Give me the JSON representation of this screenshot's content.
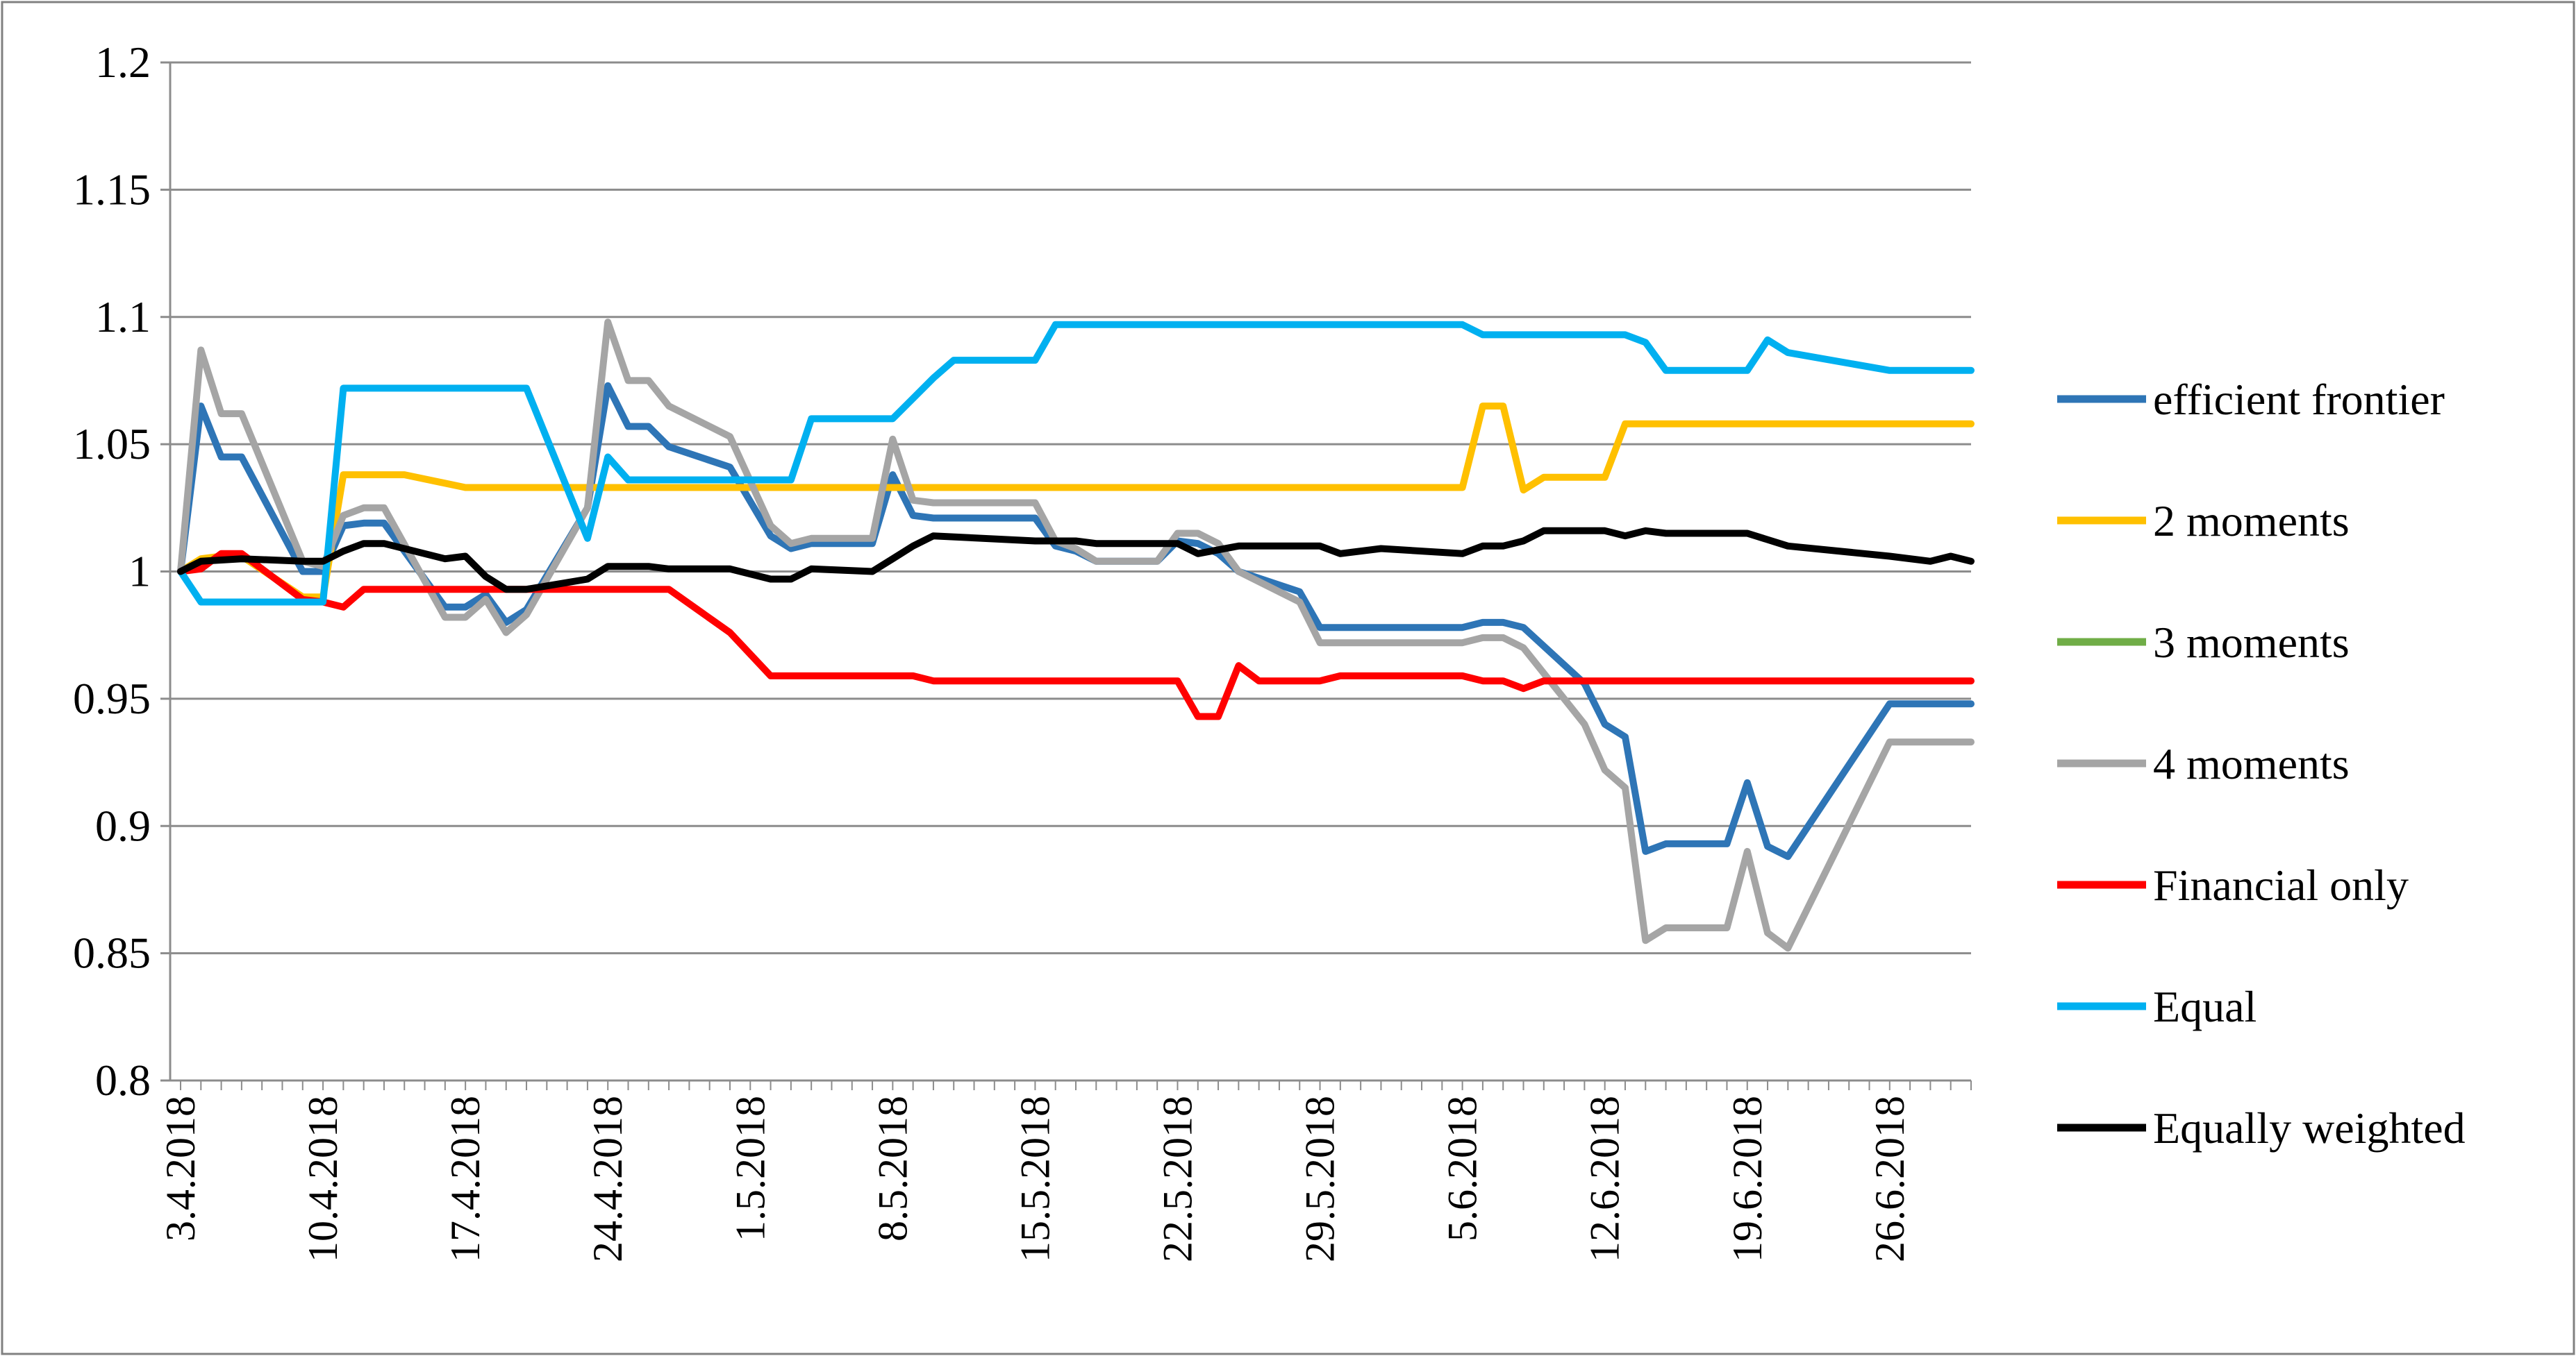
{
  "chart_data": {
    "type": "line",
    "title": "",
    "xlabel": "",
    "ylabel": "",
    "ylim": [
      0.8,
      1.2
    ],
    "y_ticks": [
      "0.8",
      "0.85",
      "0.9",
      "0.95",
      "1",
      "1.05",
      "1.1",
      "1.15",
      "1.2"
    ],
    "x_ticks": [
      "3.4.2018",
      "10.4.2018",
      "17.4.2018",
      "24.4.2018",
      "1.5.2018",
      "8.5.2018",
      "15.5.2018",
      "22.5.2018",
      "29.5.2018",
      "5.6.2018",
      "12.6.2018",
      "19.6.2018",
      "26.6.2018"
    ],
    "x_range": [
      "2018-04-03",
      "2018-06-30"
    ],
    "grid": "horizontal",
    "legend_position": "right",
    "series": [
      {
        "name": "efficient frontier",
        "color": "#2E75B6",
        "points": [
          [
            "2018-04-03",
            1.0
          ],
          [
            "2018-04-04",
            1.065
          ],
          [
            "2018-04-05",
            1.045
          ],
          [
            "2018-04-06",
            1.045
          ],
          [
            "2018-04-09",
            1.0
          ],
          [
            "2018-04-10",
            1.0
          ],
          [
            "2018-04-11",
            1.018
          ],
          [
            "2018-04-12",
            1.019
          ],
          [
            "2018-04-13",
            1.019
          ],
          [
            "2018-04-16",
            0.986
          ],
          [
            "2018-04-17",
            0.986
          ],
          [
            "2018-04-18",
            0.991
          ],
          [
            "2018-04-19",
            0.98
          ],
          [
            "2018-04-20",
            0.985
          ],
          [
            "2018-04-23",
            1.025
          ],
          [
            "2018-04-24",
            1.073
          ],
          [
            "2018-04-25",
            1.057
          ],
          [
            "2018-04-26",
            1.057
          ],
          [
            "2018-04-27",
            1.049
          ],
          [
            "2018-04-30",
            1.041
          ],
          [
            "2018-05-02",
            1.014
          ],
          [
            "2018-05-03",
            1.009
          ],
          [
            "2018-05-04",
            1.011
          ],
          [
            "2018-05-07",
            1.011
          ],
          [
            "2018-05-08",
            1.038
          ],
          [
            "2018-05-09",
            1.022
          ],
          [
            "2018-05-10",
            1.021
          ],
          [
            "2018-05-14",
            1.021
          ],
          [
            "2018-05-15",
            1.021
          ],
          [
            "2018-05-16",
            1.01
          ],
          [
            "2018-05-17",
            1.008
          ],
          [
            "2018-05-18",
            1.004
          ],
          [
            "2018-05-21",
            1.004
          ],
          [
            "2018-05-22",
            1.012
          ],
          [
            "2018-05-23",
            1.011
          ],
          [
            "2018-05-24",
            1.007
          ],
          [
            "2018-05-25",
            1.0
          ],
          [
            "2018-05-28",
            0.992
          ],
          [
            "2018-05-29",
            0.978
          ],
          [
            "2018-05-30",
            0.978
          ],
          [
            "2018-06-04",
            0.978
          ],
          [
            "2018-06-05",
            0.978
          ],
          [
            "2018-06-06",
            0.98
          ],
          [
            "2018-06-07",
            0.98
          ],
          [
            "2018-06-08",
            0.978
          ],
          [
            "2018-06-11",
            0.956
          ],
          [
            "2018-06-12",
            0.94
          ],
          [
            "2018-06-13",
            0.935
          ],
          [
            "2018-06-14",
            0.89
          ],
          [
            "2018-06-15",
            0.893
          ],
          [
            "2018-06-18",
            0.893
          ],
          [
            "2018-06-19",
            0.917
          ],
          [
            "2018-06-20",
            0.892
          ],
          [
            "2018-06-21",
            0.888
          ],
          [
            "2018-06-26",
            0.948
          ],
          [
            "2018-06-30",
            0.948
          ]
        ]
      },
      {
        "name": "2 moments",
        "color": "#FFC000",
        "points": [
          [
            "2018-04-03",
            1.0
          ],
          [
            "2018-04-04",
            1.005
          ],
          [
            "2018-04-05",
            1.006
          ],
          [
            "2018-04-06",
            1.006
          ],
          [
            "2018-04-09",
            0.99
          ],
          [
            "2018-04-10",
            0.99
          ],
          [
            "2018-04-11",
            1.038
          ],
          [
            "2018-04-14",
            1.038
          ],
          [
            "2018-04-17",
            1.033
          ],
          [
            "2018-04-23",
            1.033
          ],
          [
            "2018-05-01",
            1.033
          ],
          [
            "2018-05-15",
            1.033
          ],
          [
            "2018-06-04",
            1.033
          ],
          [
            "2018-06-05",
            1.033
          ],
          [
            "2018-06-06",
            1.065
          ],
          [
            "2018-06-07",
            1.065
          ],
          [
            "2018-06-08",
            1.032
          ],
          [
            "2018-06-09",
            1.037
          ],
          [
            "2018-06-12",
            1.037
          ],
          [
            "2018-06-13",
            1.058
          ],
          [
            "2018-06-20",
            1.058
          ],
          [
            "2018-06-30",
            1.058
          ]
        ]
      },
      {
        "name": "3 moments",
        "color": "#70AD47",
        "points": []
      },
      {
        "name": "4 moments",
        "color": "#A5A5A5",
        "points": [
          [
            "2018-04-03",
            1.0
          ],
          [
            "2018-04-04",
            1.087
          ],
          [
            "2018-04-05",
            1.062
          ],
          [
            "2018-04-06",
            1.062
          ],
          [
            "2018-04-09",
            1.004
          ],
          [
            "2018-04-10",
            1.002
          ],
          [
            "2018-04-11",
            1.022
          ],
          [
            "2018-04-12",
            1.025
          ],
          [
            "2018-04-13",
            1.025
          ],
          [
            "2018-04-16",
            0.982
          ],
          [
            "2018-04-17",
            0.982
          ],
          [
            "2018-04-18",
            0.989
          ],
          [
            "2018-04-19",
            0.976
          ],
          [
            "2018-04-20",
            0.983
          ],
          [
            "2018-04-23",
            1.025
          ],
          [
            "2018-04-24",
            1.098
          ],
          [
            "2018-04-25",
            1.075
          ],
          [
            "2018-04-26",
            1.075
          ],
          [
            "2018-04-27",
            1.065
          ],
          [
            "2018-04-30",
            1.053
          ],
          [
            "2018-05-02",
            1.018
          ],
          [
            "2018-05-03",
            1.011
          ],
          [
            "2018-05-04",
            1.013
          ],
          [
            "2018-05-07",
            1.013
          ],
          [
            "2018-05-08",
            1.052
          ],
          [
            "2018-05-09",
            1.028
          ],
          [
            "2018-05-10",
            1.027
          ],
          [
            "2018-05-14",
            1.027
          ],
          [
            "2018-05-15",
            1.027
          ],
          [
            "2018-05-16",
            1.012
          ],
          [
            "2018-05-17",
            1.009
          ],
          [
            "2018-05-18",
            1.004
          ],
          [
            "2018-05-21",
            1.004
          ],
          [
            "2018-05-22",
            1.015
          ],
          [
            "2018-05-23",
            1.015
          ],
          [
            "2018-05-24",
            1.011
          ],
          [
            "2018-05-25",
            1.0
          ],
          [
            "2018-05-28",
            0.988
          ],
          [
            "2018-05-29",
            0.972
          ],
          [
            "2018-05-30",
            0.972
          ],
          [
            "2018-06-04",
            0.972
          ],
          [
            "2018-06-05",
            0.972
          ],
          [
            "2018-06-06",
            0.974
          ],
          [
            "2018-06-07",
            0.974
          ],
          [
            "2018-06-08",
            0.97
          ],
          [
            "2018-06-11",
            0.94
          ],
          [
            "2018-06-12",
            0.922
          ],
          [
            "2018-06-13",
            0.915
          ],
          [
            "2018-06-14",
            0.855
          ],
          [
            "2018-06-15",
            0.86
          ],
          [
            "2018-06-18",
            0.86
          ],
          [
            "2018-06-19",
            0.89
          ],
          [
            "2018-06-20",
            0.858
          ],
          [
            "2018-06-21",
            0.852
          ],
          [
            "2018-06-26",
            0.933
          ],
          [
            "2018-06-30",
            0.933
          ]
        ]
      },
      {
        "name": "Financial only",
        "color": "#FF0000",
        "points": [
          [
            "2018-04-03",
            1.0
          ],
          [
            "2018-04-04",
            1.001
          ],
          [
            "2018-04-05",
            1.007
          ],
          [
            "2018-04-06",
            1.007
          ],
          [
            "2018-04-09",
            0.989
          ],
          [
            "2018-04-10",
            0.988
          ],
          [
            "2018-04-11",
            0.986
          ],
          [
            "2018-04-12",
            0.993
          ],
          [
            "2018-04-26",
            0.993
          ],
          [
            "2018-04-27",
            0.993
          ],
          [
            "2018-04-30",
            0.976
          ],
          [
            "2018-05-02",
            0.959
          ],
          [
            "2018-05-09",
            0.959
          ],
          [
            "2018-05-10",
            0.957
          ],
          [
            "2018-05-22",
            0.957
          ],
          [
            "2018-05-23",
            0.943
          ],
          [
            "2018-05-24",
            0.943
          ],
          [
            "2018-05-25",
            0.963
          ],
          [
            "2018-05-26",
            0.957
          ],
          [
            "2018-05-29",
            0.957
          ],
          [
            "2018-05-30",
            0.959
          ],
          [
            "2018-06-05",
            0.959
          ],
          [
            "2018-06-06",
            0.957
          ],
          [
            "2018-06-07",
            0.957
          ],
          [
            "2018-06-08",
            0.954
          ],
          [
            "2018-06-09",
            0.957
          ],
          [
            "2018-06-30",
            0.957
          ]
        ]
      },
      {
        "name": "Equal",
        "color": "#00B0F0",
        "points": [
          [
            "2018-04-03",
            1.0
          ],
          [
            "2018-04-04",
            0.988
          ],
          [
            "2018-04-09",
            0.988
          ],
          [
            "2018-04-10",
            0.988
          ],
          [
            "2018-04-11",
            1.072
          ],
          [
            "2018-04-20",
            1.072
          ],
          [
            "2018-04-23",
            1.013
          ],
          [
            "2018-04-24",
            1.045
          ],
          [
            "2018-04-25",
            1.036
          ],
          [
            "2018-05-03",
            1.036
          ],
          [
            "2018-05-04",
            1.06
          ],
          [
            "2018-05-08",
            1.06
          ],
          [
            "2018-05-09",
            1.068
          ],
          [
            "2018-05-10",
            1.076
          ],
          [
            "2018-05-11",
            1.083
          ],
          [
            "2018-05-15",
            1.083
          ],
          [
            "2018-05-16",
            1.097
          ],
          [
            "2018-06-05",
            1.097
          ],
          [
            "2018-06-06",
            1.093
          ],
          [
            "2018-06-13",
            1.093
          ],
          [
            "2018-06-14",
            1.09
          ],
          [
            "2018-06-15",
            1.079
          ],
          [
            "2018-06-19",
            1.079
          ],
          [
            "2018-06-20",
            1.091
          ],
          [
            "2018-06-21",
            1.086
          ],
          [
            "2018-06-26",
            1.079
          ],
          [
            "2018-06-30",
            1.079
          ]
        ]
      },
      {
        "name": "Equally weighted",
        "color": "#000000",
        "points": [
          [
            "2018-04-03",
            1.0
          ],
          [
            "2018-04-04",
            1.004
          ],
          [
            "2018-04-06",
            1.005
          ],
          [
            "2018-04-09",
            1.004
          ],
          [
            "2018-04-10",
            1.004
          ],
          [
            "2018-04-11",
            1.008
          ],
          [
            "2018-04-12",
            1.011
          ],
          [
            "2018-04-13",
            1.011
          ],
          [
            "2018-04-16",
            1.005
          ],
          [
            "2018-04-17",
            1.006
          ],
          [
            "2018-04-18",
            0.998
          ],
          [
            "2018-04-19",
            0.993
          ],
          [
            "2018-04-20",
            0.993
          ],
          [
            "2018-04-23",
            0.997
          ],
          [
            "2018-04-24",
            1.002
          ],
          [
            "2018-04-26",
            1.002
          ],
          [
            "2018-04-27",
            1.001
          ],
          [
            "2018-04-30",
            1.001
          ],
          [
            "2018-05-02",
            0.997
          ],
          [
            "2018-05-03",
            0.997
          ],
          [
            "2018-05-04",
            1.001
          ],
          [
            "2018-05-07",
            1.0
          ],
          [
            "2018-05-08",
            1.005
          ],
          [
            "2018-05-09",
            1.01
          ],
          [
            "2018-05-10",
            1.014
          ],
          [
            "2018-05-15",
            1.012
          ],
          [
            "2018-05-17",
            1.012
          ],
          [
            "2018-05-18",
            1.011
          ],
          [
            "2018-05-22",
            1.011
          ],
          [
            "2018-05-23",
            1.007
          ],
          [
            "2018-05-25",
            1.01
          ],
          [
            "2018-05-29",
            1.01
          ],
          [
            "2018-05-30",
            1.007
          ],
          [
            "2018-06-01",
            1.009
          ],
          [
            "2018-06-05",
            1.007
          ],
          [
            "2018-06-06",
            1.01
          ],
          [
            "2018-06-07",
            1.01
          ],
          [
            "2018-06-08",
            1.012
          ],
          [
            "2018-06-09",
            1.016
          ],
          [
            "2018-06-12",
            1.016
          ],
          [
            "2018-06-13",
            1.014
          ],
          [
            "2018-06-14",
            1.016
          ],
          [
            "2018-06-15",
            1.015
          ],
          [
            "2018-06-19",
            1.015
          ],
          [
            "2018-06-21",
            1.01
          ],
          [
            "2018-06-26",
            1.006
          ],
          [
            "2018-06-28",
            1.004
          ],
          [
            "2018-06-29",
            1.006
          ],
          [
            "2018-06-30",
            1.004
          ]
        ]
      }
    ]
  }
}
